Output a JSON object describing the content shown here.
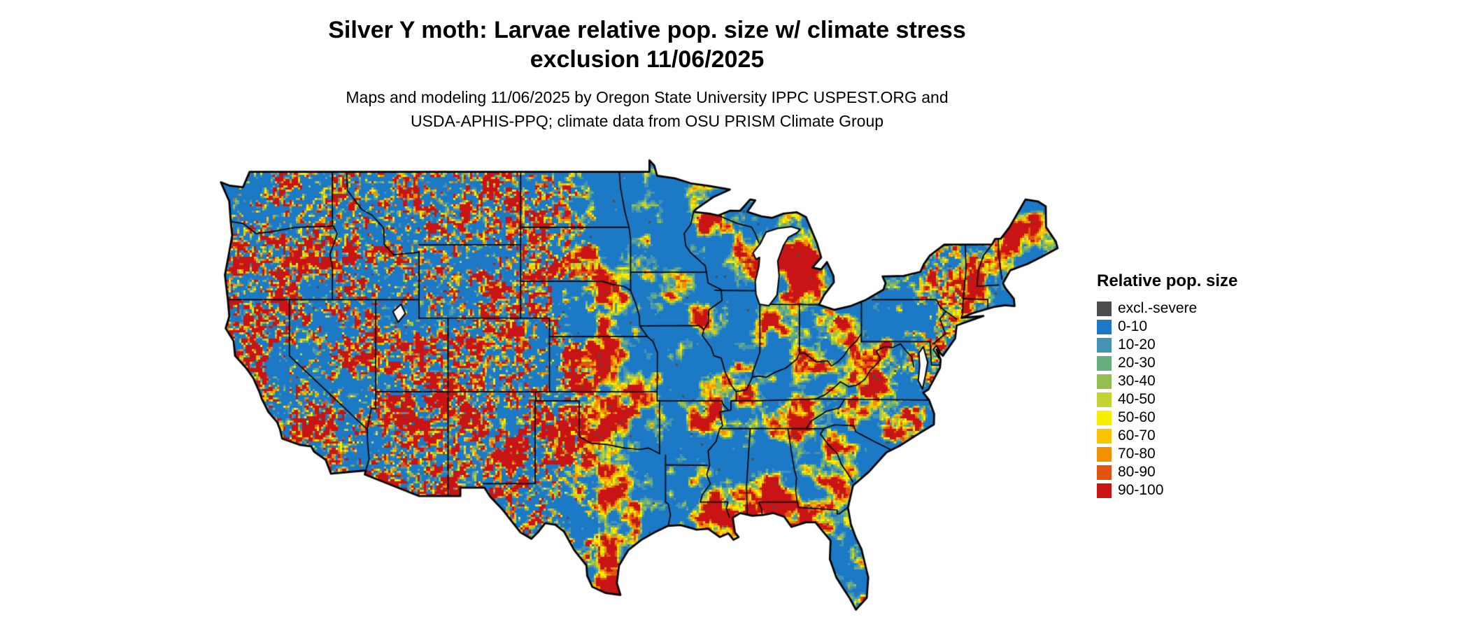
{
  "page": {
    "background": "#ffffff"
  },
  "title": {
    "line1": "Silver Y moth: Larvae relative pop. size w/ climate stress",
    "line2": "exclusion 11/06/2025"
  },
  "subtitle": {
    "line1": "Maps and modeling 11/06/2025 by Oregon State University IPPC USPEST.ORG and",
    "line2": "USDA-APHIS-PPQ; climate data from OSU PRISM Climate Group"
  },
  "map": {
    "region": "Continental United States"
  },
  "legend": {
    "title": "Relative pop. size",
    "entries": [
      {
        "label": "excl.-severe",
        "color": "#4d4d4d"
      },
      {
        "label": "0-10",
        "color": "#1c79c6"
      },
      {
        "label": "10-20",
        "color": "#4493b2"
      },
      {
        "label": "20-30",
        "color": "#67ad80"
      },
      {
        "label": "30-40",
        "color": "#96bf52"
      },
      {
        "label": "40-50",
        "color": "#c4d332"
      },
      {
        "label": "50-60",
        "color": "#f7ef00"
      },
      {
        "label": "60-70",
        "color": "#fbc400"
      },
      {
        "label": "70-80",
        "color": "#f29100"
      },
      {
        "label": "80-90",
        "color": "#e1530e"
      },
      {
        "label": "90-100",
        "color": "#c81414"
      }
    ]
  }
}
